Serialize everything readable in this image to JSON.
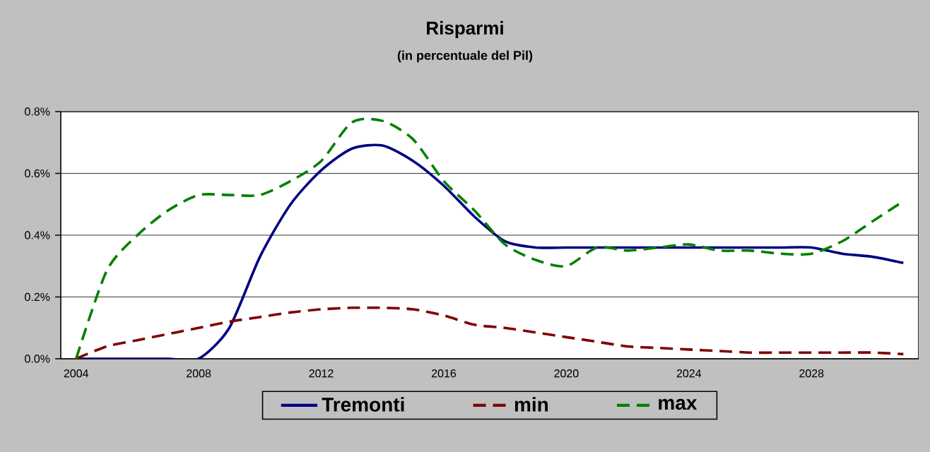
{
  "chart_data": {
    "type": "line",
    "title": "Risparmi",
    "subtitle": "(in percentuale del Pil)",
    "categories": [
      "2004",
      null,
      null,
      null,
      "2008",
      null,
      null,
      null,
      "2012",
      null,
      null,
      null,
      "2016",
      null,
      null,
      null,
      "2020",
      null,
      null,
      null,
      "2024",
      null,
      null,
      null,
      "2028",
      null,
      null,
      null
    ],
    "series": [
      {
        "name": "Tremonti",
        "color": "#000080",
        "line_style": "solid",
        "values": [
          0,
          0,
          0,
          0,
          0,
          0.1,
          0.33,
          0.5,
          0.61,
          0.68,
          0.69,
          0.64,
          0.56,
          0.46,
          0.38,
          0.36,
          0.36,
          0.36,
          0.36,
          0.36,
          0.36,
          0.36,
          0.36,
          0.36,
          0.36,
          0.34,
          0.33,
          0.31
        ]
      },
      {
        "name": "min",
        "color": "#800000",
        "line_style": "dashed",
        "values": [
          0,
          0.04,
          0.06,
          0.08,
          0.1,
          0.12,
          0.135,
          0.15,
          0.16,
          0.165,
          0.165,
          0.16,
          0.14,
          0.11,
          0.1,
          0.085,
          0.07,
          0.055,
          0.04,
          0.035,
          0.03,
          0.025,
          0.02,
          0.02,
          0.02,
          0.02,
          0.02,
          0.015
        ]
      },
      {
        "name": "max",
        "color": "#008000",
        "line_style": "dashed",
        "values": [
          0,
          0.285,
          0.4,
          0.48,
          0.53,
          0.53,
          0.53,
          0.575,
          0.64,
          0.765,
          0.77,
          0.71,
          0.575,
          0.48,
          0.37,
          0.32,
          0.3,
          0.36,
          0.35,
          0.36,
          0.37,
          0.35,
          0.35,
          0.34,
          0.34,
          0.38,
          0.445,
          0.51
        ]
      }
    ],
    "ylim": [
      0,
      0.8
    ],
    "yticks": [
      {
        "value": 0,
        "label": "0.0%"
      },
      {
        "value": 0.2,
        "label": "0.2%"
      },
      {
        "value": 0.4,
        "label": "0.4%"
      },
      {
        "value": 0.6,
        "label": "0.6%"
      },
      {
        "value": 0.8,
        "label": "0.8%"
      }
    ],
    "grid": "y",
    "legend": "bottom",
    "marker": "none"
  }
}
